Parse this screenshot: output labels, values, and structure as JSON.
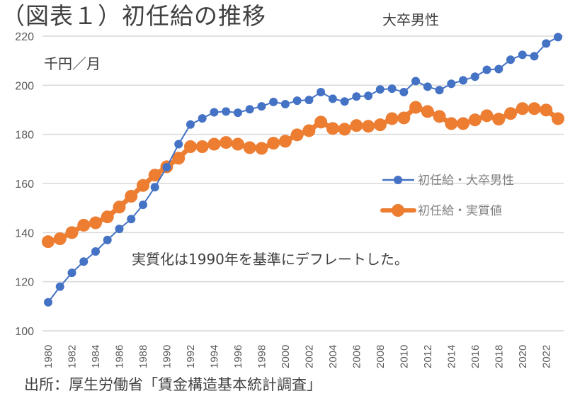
{
  "title": "（図表１）初任給の推移",
  "subtitle": "大卒男性",
  "unit_label": "千円／月",
  "note": "実質化は1990年を基準にデフレートした。",
  "source": "出所：厚生労働省「賃金構造基本統計調査」",
  "colors": {
    "nominal": "#4472C4",
    "real": "#ED7D31",
    "grid": "#D9D9D9"
  },
  "chart_data": {
    "type": "line",
    "title": "（図表１）初任給の推移",
    "subtitle": "大卒男性",
    "xlabel": "",
    "ylabel": "千円／月",
    "ylim": [
      100,
      220
    ],
    "yticks": [
      100,
      120,
      140,
      160,
      180,
      200,
      220
    ],
    "x": [
      1980,
      1981,
      1982,
      1983,
      1984,
      1985,
      1986,
      1987,
      1988,
      1989,
      1990,
      1991,
      1992,
      1993,
      1994,
      1995,
      1996,
      1997,
      1998,
      1999,
      2000,
      2001,
      2002,
      2003,
      2004,
      2005,
      2006,
      2007,
      2008,
      2009,
      2010,
      2011,
      2012,
      2013,
      2014,
      2015,
      2016,
      2017,
      2018,
      2019,
      2020,
      2021,
      2022,
      2023
    ],
    "xtick_labels": [
      "1980",
      "1982",
      "1984",
      "1986",
      "1988",
      "1990",
      "1992",
      "1994",
      "1996",
      "1998",
      "2000",
      "2002",
      "2004",
      "2006",
      "2008",
      "2010",
      "2012",
      "2014",
      "2016",
      "2018",
      "2020",
      "2022"
    ],
    "grid": true,
    "legend_position": "right-middle",
    "series": [
      {
        "name": "初任給・大卒男性",
        "color": "#4472C4",
        "values": [
          111.6,
          118.0,
          123.6,
          128.2,
          132.3,
          137.0,
          141.5,
          145.5,
          151.3,
          158.5,
          166.6,
          176.0,
          184.0,
          186.5,
          189.0,
          189.3,
          188.8,
          190.2,
          191.4,
          193.2,
          192.3,
          193.7,
          194.0,
          197.2,
          194.5,
          193.4,
          195.4,
          195.7,
          198.3,
          198.6,
          197.2,
          201.7,
          199.4,
          198.0,
          200.6,
          202.0,
          203.5,
          206.3,
          206.6,
          210.4,
          212.4,
          211.8,
          217.0,
          219.6
        ]
      },
      {
        "name": "初任給・実質値",
        "color": "#ED7D31",
        "values": [
          136.3,
          137.5,
          140.0,
          143.0,
          144.0,
          146.4,
          150.4,
          154.8,
          159.2,
          163.4,
          166.8,
          170.3,
          175.0,
          175.0,
          176.0,
          176.7,
          176.0,
          174.6,
          174.3,
          176.4,
          177.2,
          179.8,
          181.5,
          185.0,
          182.4,
          182.1,
          183.6,
          183.3,
          183.9,
          186.4,
          186.7,
          191.0,
          189.3,
          187.3,
          184.4,
          184.4,
          185.9,
          187.6,
          186.2,
          188.5,
          190.5,
          190.5,
          189.9,
          186.4
        ]
      }
    ],
    "annotations": [
      "実質化は1990年を基準にデフレートした。"
    ]
  }
}
